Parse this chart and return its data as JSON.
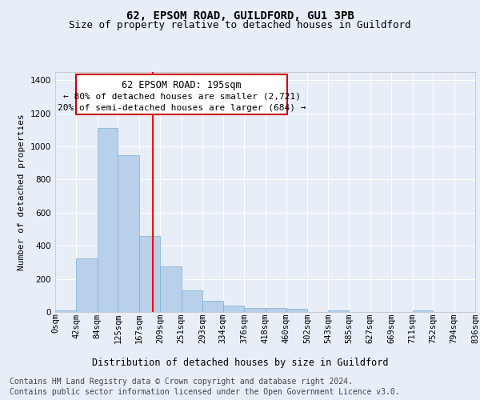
{
  "title": "62, EPSOM ROAD, GUILDFORD, GU1 3PB",
  "subtitle": "Size of property relative to detached houses in Guildford",
  "xlabel": "Distribution of detached houses by size in Guildford",
  "ylabel": "Number of detached properties",
  "footer_line1": "Contains HM Land Registry data © Crown copyright and database right 2024.",
  "footer_line2": "Contains public sector information licensed under the Open Government Licence v3.0.",
  "annotation_line1": "62 EPSOM ROAD: 195sqm",
  "annotation_line2": "← 80% of detached houses are smaller (2,721)",
  "annotation_line3": "20% of semi-detached houses are larger (684) →",
  "bin_edges": [
    0,
    42,
    84,
    125,
    167,
    209,
    251,
    293,
    334,
    376,
    418,
    460,
    502,
    543,
    585,
    627,
    669,
    711,
    752,
    794,
    836
  ],
  "heights": [
    10,
    325,
    1110,
    945,
    460,
    275,
    130,
    70,
    40,
    25,
    25,
    18,
    0,
    10,
    0,
    0,
    0,
    10,
    0,
    0
  ],
  "tick_labels": [
    "0sqm",
    "42sqm",
    "84sqm",
    "125sqm",
    "167sqm",
    "209sqm",
    "251sqm",
    "293sqm",
    "334sqm",
    "376sqm",
    "418sqm",
    "460sqm",
    "502sqm",
    "543sqm",
    "585sqm",
    "627sqm",
    "669sqm",
    "711sqm",
    "752sqm",
    "794sqm",
    "836sqm"
  ],
  "bar_color": "#b8d0ea",
  "bar_edgecolor": "#7aaed6",
  "red_line_x": 195,
  "ylim": [
    0,
    1450
  ],
  "xlim": [
    0,
    836
  ],
  "bg_color": "#e8eef8",
  "plot_bg_color": "#e8eef8",
  "grid_color": "#ffffff",
  "title_fontsize": 10,
  "subtitle_fontsize": 9,
  "axis_label_fontsize": 8.5,
  "tick_fontsize": 7.5,
  "footer_fontsize": 7,
  "ylabel_fontsize": 8,
  "ann_line1_fontsize": 8.5,
  "ann_line23_fontsize": 8
}
